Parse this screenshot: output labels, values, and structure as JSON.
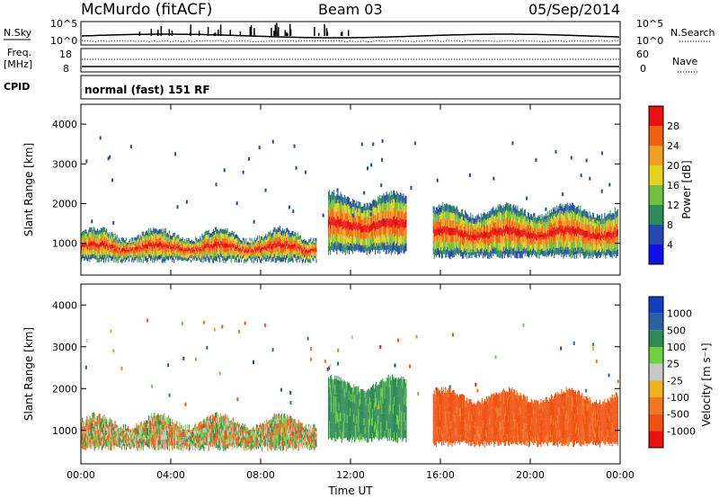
{
  "header": {
    "station": "McMurdo (fitACF)",
    "beam": "Beam 03",
    "date": "05/Sep/2014"
  },
  "strip_labels": {
    "nsky": "N.Sky",
    "nsky_top": "10^5",
    "nsky_bottom": "10^0",
    "nsearch": "N.Search",
    "nsearch_top": "10^5",
    "nsearch_bottom": "10^0",
    "freq_line1": "Freq.",
    "freq_line2": "[MHz]",
    "freq_top": "18",
    "freq_bottom": "8",
    "nave": "Nave",
    "nave_top": "60",
    "nave_bottom": "0",
    "cpid": "CPID",
    "cpid_value": "normal (fast) 151 RF"
  },
  "chart_data": [
    {
      "type": "heatmap",
      "name": "power-panel",
      "ylabel": "Slant Range [km]",
      "ylim": [
        200,
        4500
      ],
      "yticks": [
        "1000",
        "2000",
        "3000",
        "4000"
      ],
      "xticks": [
        "00:00",
        "04:00",
        "08:00",
        "12:00",
        "16:00",
        "20:00",
        "00:00"
      ],
      "colorbar_label": "Power [dB]",
      "colorbar_ticks": [
        "4",
        "8",
        "12",
        "16",
        "20",
        "24",
        "28"
      ],
      "colorbar_colors": [
        "#1010e8",
        "#2448b0",
        "#2e8b57",
        "#6fbf40",
        "#e8d020",
        "#f0a020",
        "#f06010",
        "#e81010"
      ],
      "blobs": [
        {
          "start": "00:00",
          "end": "10:30",
          "low_km": 500,
          "high_km": 1300,
          "level": "strong"
        },
        {
          "start": "11:00",
          "end": "14:30",
          "low_km": 700,
          "high_km": 2200,
          "level": "strong"
        },
        {
          "start": "15:40",
          "end": "23:55",
          "low_km": 600,
          "high_km": 1900,
          "level": "strong"
        }
      ]
    },
    {
      "type": "heatmap",
      "name": "velocity-panel",
      "ylabel": "Slant Range [km]",
      "ylim": [
        200,
        4500
      ],
      "yticks": [
        "1000",
        "2000",
        "3000",
        "4000"
      ],
      "xticks": [
        "00:00",
        "04:00",
        "08:00",
        "12:00",
        "16:00",
        "20:00",
        "00:00"
      ],
      "xlabel": "Time UT",
      "colorbar_label": "Velocity [m s⁻¹]",
      "colorbar_ticks": [
        "1000",
        "500",
        "100",
        "25",
        "-25",
        "-100",
        "-500",
        "-1000"
      ],
      "colorbar_colors": [
        "#1040c0",
        "#2a60a8",
        "#2e8b57",
        "#6fcf40",
        "#c8c8c8",
        "#f0b020",
        "#f07820",
        "#f05010",
        "#e81010"
      ],
      "blobs": [
        {
          "start": "00:00",
          "end": "10:30",
          "low_km": 500,
          "high_km": 1300,
          "level": "mixed"
        },
        {
          "start": "11:00",
          "end": "14:30",
          "low_km": 700,
          "high_km": 2200,
          "level": "green"
        },
        {
          "start": "15:40",
          "end": "23:55",
          "low_km": 600,
          "high_km": 1900,
          "level": "orange"
        }
      ]
    }
  ]
}
